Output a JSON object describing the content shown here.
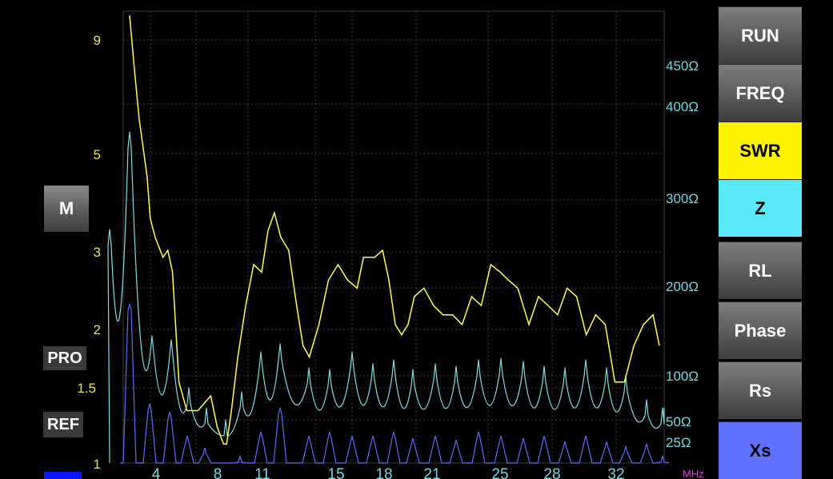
{
  "colors": {
    "swr": "#ffff4d",
    "swr_label": "#e8e84a",
    "z": "#7fe0e0",
    "z_label": "#6fd8e0",
    "xs": "#5b6bff",
    "mhz": "#d040d0",
    "grid": "#3a3a3a"
  },
  "buttons": {
    "run": "RUN",
    "freq": "FREQ",
    "swr": "SWR",
    "z": "Z",
    "rl": "RL",
    "phase": "Phase",
    "rs": "Rs",
    "xs": "Xs"
  },
  "left": {
    "m": "M",
    "pro": "PRO",
    "ref": "REF"
  },
  "axis": {
    "unit": "MHz",
    "x_ticks": [
      "4",
      "8",
      "11",
      "15",
      "18",
      "21",
      "25",
      "28",
      "32"
    ],
    "swr_ticks": [
      "9",
      "5",
      "3",
      "2",
      "1.5",
      "1"
    ],
    "z_ticks": [
      "450Ω",
      "400Ω",
      "300Ω",
      "200Ω",
      "100Ω",
      "50Ω",
      "25Ω"
    ]
  },
  "chart_data": {
    "type": "line",
    "x_range_mhz": [
      1.5,
      35.5
    ],
    "swr_scale": "logarithmic",
    "z_scale": "nonlinear",
    "series": [
      {
        "name": "SWR",
        "x": [
          1.9,
          2.2,
          2.5,
          3.0,
          3.2,
          3.5,
          4.0,
          4.3,
          4.6,
          5.0,
          5.5,
          6.2,
          7.0,
          7.4,
          7.8,
          8.0,
          8.3,
          8.7,
          9.2,
          9.7,
          10.2,
          10.6,
          11.0,
          11.4,
          11.9,
          12.4,
          12.8,
          13.2,
          13.8,
          14.4,
          15.0,
          15.6,
          16.2,
          16.6,
          17.3,
          17.8,
          18.2,
          18.6,
          19.0,
          19.4,
          19.8,
          20.4,
          21.0,
          21.6,
          22.2,
          22.8,
          23.4,
          24.0,
          24.6,
          25.2,
          25.7,
          26.3,
          27.0,
          27.6,
          28.2,
          28.8,
          29.4,
          30.0,
          30.6,
          31.2,
          31.8,
          32.4,
          33.0,
          33.6,
          34.2,
          34.8,
          35.2
        ],
        "y": [
          9.4,
          7.2,
          5.6,
          4.2,
          3.4,
          3.1,
          2.8,
          2.9,
          2.6,
          1.5,
          1.3,
          1.3,
          1.4,
          1.2,
          1.1,
          1.1,
          1.3,
          1.7,
          2.2,
          2.7,
          2.6,
          3.2,
          3.5,
          3.1,
          2.9,
          2.2,
          1.8,
          1.7,
          2.0,
          2.5,
          2.7,
          2.5,
          2.4,
          2.8,
          2.8,
          2.9,
          2.5,
          2.0,
          1.9,
          2.0,
          2.3,
          2.4,
          2.2,
          2.1,
          2.1,
          2.0,
          2.3,
          2.2,
          2.7,
          2.6,
          2.5,
          2.4,
          2.0,
          2.3,
          2.2,
          2.1,
          2.4,
          2.3,
          1.9,
          2.1,
          2.0,
          1.5,
          1.5,
          1.8,
          2.0,
          2.1,
          1.8
        ]
      }
    ]
  }
}
